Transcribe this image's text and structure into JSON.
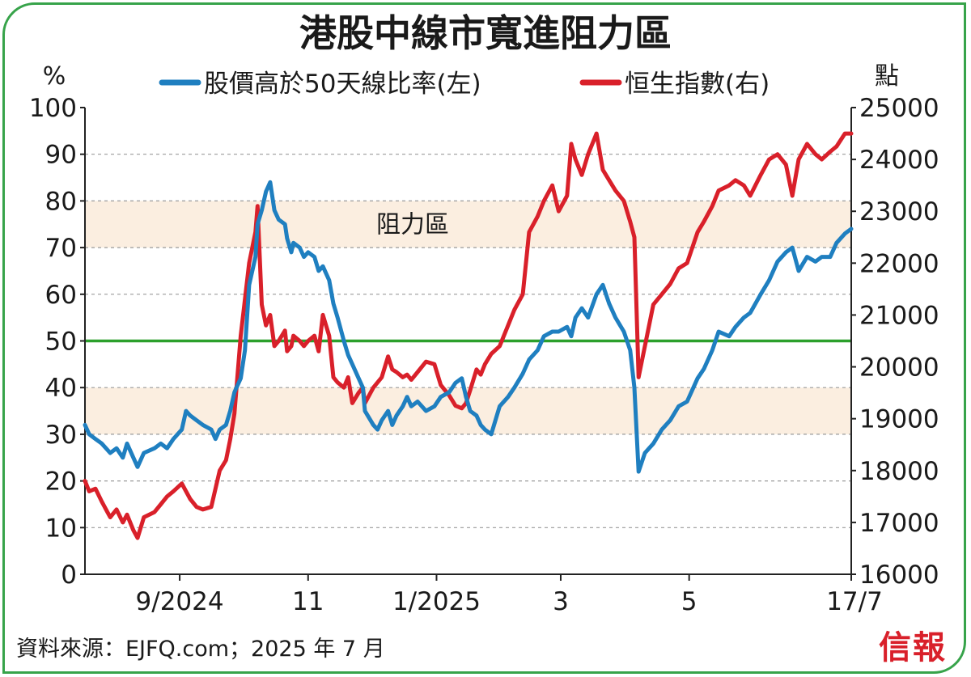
{
  "chart_data": {
    "type": "line",
    "title": "港股中線市寬進阻力區",
    "left_axis": {
      "unit_label": "%",
      "range": [
        0,
        100
      ],
      "ticks": [
        0,
        10,
        20,
        30,
        40,
        50,
        60,
        70,
        80,
        90,
        100
      ]
    },
    "right_axis": {
      "unit_label": "點",
      "range": [
        16000,
        25000
      ],
      "ticks": [
        16000,
        17000,
        18000,
        19000,
        20000,
        21000,
        22000,
        23000,
        24000,
        25000
      ]
    },
    "x_tick_labels": [
      "9/2024",
      "11",
      "1/2025",
      "3",
      "5",
      "17/7"
    ],
    "x_tick_dates": [
      "2024-09-01",
      "2024-11-01",
      "2025-01-01",
      "2025-03-01",
      "2025-05-01",
      "2025-07-17"
    ],
    "x_range": [
      "2024-07-18",
      "2025-07-17"
    ],
    "zones": [
      {
        "label": "阻力區",
        "from": 70,
        "to": 80
      },
      {
        "label": "",
        "from": 30,
        "to": 40
      }
    ],
    "reference_line": {
      "value": 50,
      "color": "#2ca02c"
    },
    "gridlines": true,
    "legend_placement": "top",
    "series": [
      {
        "name": "股價高於50天線比率(左)",
        "axis": "left",
        "color": "#1f7fc0",
        "points": [
          [
            "2024-07-18",
            32
          ],
          [
            "2024-07-20",
            30
          ],
          [
            "2024-07-23",
            29
          ],
          [
            "2024-07-26",
            28
          ],
          [
            "2024-07-30",
            26
          ],
          [
            "2024-08-02",
            27
          ],
          [
            "2024-08-05",
            25
          ],
          [
            "2024-08-07",
            28
          ],
          [
            "2024-08-10",
            25
          ],
          [
            "2024-08-12",
            23
          ],
          [
            "2024-08-15",
            26
          ],
          [
            "2024-08-20",
            27
          ],
          [
            "2024-08-23",
            28
          ],
          [
            "2024-08-26",
            27
          ],
          [
            "2024-08-29",
            29
          ],
          [
            "2024-09-02",
            31
          ],
          [
            "2024-09-04",
            35
          ],
          [
            "2024-09-06",
            34
          ],
          [
            "2024-09-09",
            33
          ],
          [
            "2024-09-12",
            32
          ],
          [
            "2024-09-16",
            31
          ],
          [
            "2024-09-18",
            29
          ],
          [
            "2024-09-20",
            31
          ],
          [
            "2024-09-23",
            32
          ],
          [
            "2024-09-25",
            35
          ],
          [
            "2024-09-27",
            39
          ],
          [
            "2024-09-30",
            42
          ],
          [
            "2024-10-02",
            48
          ],
          [
            "2024-10-04",
            62
          ],
          [
            "2024-10-07",
            68
          ],
          [
            "2024-10-08",
            75
          ],
          [
            "2024-10-10",
            78
          ],
          [
            "2024-10-12",
            82
          ],
          [
            "2024-10-14",
            84
          ],
          [
            "2024-10-16",
            78
          ],
          [
            "2024-10-18",
            76
          ],
          [
            "2024-10-21",
            75
          ],
          [
            "2024-10-22",
            72
          ],
          [
            "2024-10-24",
            69
          ],
          [
            "2024-10-25",
            71
          ],
          [
            "2024-10-28",
            70
          ],
          [
            "2024-10-30",
            68
          ],
          [
            "2024-11-01",
            69
          ],
          [
            "2024-11-04",
            68
          ],
          [
            "2024-11-06",
            65
          ],
          [
            "2024-11-08",
            66
          ],
          [
            "2024-11-11",
            63
          ],
          [
            "2024-11-13",
            58
          ],
          [
            "2024-11-15",
            55
          ],
          [
            "2024-11-18",
            50
          ],
          [
            "2024-11-20",
            47
          ],
          [
            "2024-11-22",
            45
          ],
          [
            "2024-11-25",
            42
          ],
          [
            "2024-11-27",
            40
          ],
          [
            "2024-11-28",
            35
          ],
          [
            "2024-12-02",
            32
          ],
          [
            "2024-12-04",
            31
          ],
          [
            "2024-12-06",
            33
          ],
          [
            "2024-12-09",
            35
          ],
          [
            "2024-12-11",
            32
          ],
          [
            "2024-12-13",
            34
          ],
          [
            "2024-12-16",
            36
          ],
          [
            "2024-12-18",
            38
          ],
          [
            "2024-12-20",
            36
          ],
          [
            "2024-12-23",
            37
          ],
          [
            "2024-12-27",
            35
          ],
          [
            "2024-12-31",
            36
          ],
          [
            "2025-01-03",
            38
          ],
          [
            "2025-01-07",
            39
          ],
          [
            "2025-01-10",
            41
          ],
          [
            "2025-01-13",
            42
          ],
          [
            "2025-01-15",
            38
          ],
          [
            "2025-01-17",
            35
          ],
          [
            "2025-01-20",
            34
          ],
          [
            "2025-01-22",
            32
          ],
          [
            "2025-01-24",
            31
          ],
          [
            "2025-01-27",
            30
          ],
          [
            "2025-01-31",
            36
          ],
          [
            "2025-02-04",
            38
          ],
          [
            "2025-02-07",
            40
          ],
          [
            "2025-02-11",
            43
          ],
          [
            "2025-02-14",
            46
          ],
          [
            "2025-02-18",
            48
          ],
          [
            "2025-02-21",
            51
          ],
          [
            "2025-02-25",
            52
          ],
          [
            "2025-02-28",
            52
          ],
          [
            "2025-03-04",
            53
          ],
          [
            "2025-03-06",
            51
          ],
          [
            "2025-03-08",
            55
          ],
          [
            "2025-03-11",
            57
          ],
          [
            "2025-03-14",
            55
          ],
          [
            "2025-03-18",
            60
          ],
          [
            "2025-03-21",
            62
          ],
          [
            "2025-03-24",
            58
          ],
          [
            "2025-03-27",
            55
          ],
          [
            "2025-03-31",
            52
          ],
          [
            "2025-04-03",
            48
          ],
          [
            "2025-04-05",
            40
          ],
          [
            "2025-04-07",
            22
          ],
          [
            "2025-04-10",
            26
          ],
          [
            "2025-04-14",
            28
          ],
          [
            "2025-04-18",
            31
          ],
          [
            "2025-04-22",
            33
          ],
          [
            "2025-04-26",
            36
          ],
          [
            "2025-04-30",
            37
          ],
          [
            "2025-05-05",
            42
          ],
          [
            "2025-05-08",
            44
          ],
          [
            "2025-05-12",
            48
          ],
          [
            "2025-05-15",
            52
          ],
          [
            "2025-05-20",
            51
          ],
          [
            "2025-05-23",
            53
          ],
          [
            "2025-05-27",
            55
          ],
          [
            "2025-05-30",
            56
          ],
          [
            "2025-06-04",
            60
          ],
          [
            "2025-06-08",
            63
          ],
          [
            "2025-06-12",
            67
          ],
          [
            "2025-06-16",
            69
          ],
          [
            "2025-06-19",
            70
          ],
          [
            "2025-06-22",
            65
          ],
          [
            "2025-06-26",
            68
          ],
          [
            "2025-06-30",
            67
          ],
          [
            "2025-07-03",
            68
          ],
          [
            "2025-07-07",
            68
          ],
          [
            "2025-07-10",
            71
          ],
          [
            "2025-07-14",
            73
          ],
          [
            "2025-07-17",
            74
          ]
        ]
      },
      {
        "name": "恒生指數(右)",
        "axis": "right",
        "color": "#d9202a",
        "points": [
          [
            "2024-07-18",
            17800
          ],
          [
            "2024-07-20",
            17600
          ],
          [
            "2024-07-23",
            17650
          ],
          [
            "2024-07-26",
            17400
          ],
          [
            "2024-07-30",
            17100
          ],
          [
            "2024-08-02",
            17250
          ],
          [
            "2024-08-05",
            17000
          ],
          [
            "2024-08-07",
            17150
          ],
          [
            "2024-08-10",
            16850
          ],
          [
            "2024-08-12",
            16700
          ],
          [
            "2024-08-15",
            17100
          ],
          [
            "2024-08-20",
            17200
          ],
          [
            "2024-08-23",
            17350
          ],
          [
            "2024-08-26",
            17500
          ],
          [
            "2024-08-29",
            17600
          ],
          [
            "2024-09-02",
            17750
          ],
          [
            "2024-09-04",
            17600
          ],
          [
            "2024-09-06",
            17450
          ],
          [
            "2024-09-09",
            17300
          ],
          [
            "2024-09-12",
            17250
          ],
          [
            "2024-09-16",
            17300
          ],
          [
            "2024-09-18",
            17650
          ],
          [
            "2024-09-20",
            18000
          ],
          [
            "2024-09-23",
            18200
          ],
          [
            "2024-09-25",
            18600
          ],
          [
            "2024-09-27",
            19100
          ],
          [
            "2024-09-30",
            20600
          ],
          [
            "2024-10-02",
            21300
          ],
          [
            "2024-10-04",
            22000
          ],
          [
            "2024-10-07",
            22600
          ],
          [
            "2024-10-08",
            23100
          ],
          [
            "2024-10-10",
            21200
          ],
          [
            "2024-10-12",
            20800
          ],
          [
            "2024-10-14",
            21000
          ],
          [
            "2024-10-16",
            20400
          ],
          [
            "2024-10-18",
            20500
          ],
          [
            "2024-10-21",
            20700
          ],
          [
            "2024-10-22",
            20300
          ],
          [
            "2024-10-24",
            20400
          ],
          [
            "2024-10-25",
            20600
          ],
          [
            "2024-10-28",
            20500
          ],
          [
            "2024-10-30",
            20400
          ],
          [
            "2024-11-01",
            20500
          ],
          [
            "2024-11-04",
            20600
          ],
          [
            "2024-11-06",
            20300
          ],
          [
            "2024-11-08",
            21000
          ],
          [
            "2024-11-11",
            20600
          ],
          [
            "2024-11-13",
            19800
          ],
          [
            "2024-11-15",
            19700
          ],
          [
            "2024-11-18",
            19600
          ],
          [
            "2024-11-20",
            19800
          ],
          [
            "2024-11-22",
            19300
          ],
          [
            "2024-11-25",
            19500
          ],
          [
            "2024-11-27",
            19600
          ],
          [
            "2024-11-28",
            19300
          ],
          [
            "2024-12-02",
            19600
          ],
          [
            "2024-12-04",
            19700
          ],
          [
            "2024-12-06",
            19800
          ],
          [
            "2024-12-09",
            20200
          ],
          [
            "2024-12-11",
            19950
          ],
          [
            "2024-12-13",
            19900
          ],
          [
            "2024-12-16",
            19800
          ],
          [
            "2024-12-18",
            19850
          ],
          [
            "2024-12-20",
            19750
          ],
          [
            "2024-12-23",
            19900
          ],
          [
            "2024-12-27",
            20100
          ],
          [
            "2024-12-31",
            20050
          ],
          [
            "2025-01-03",
            19650
          ],
          [
            "2025-01-07",
            19450
          ],
          [
            "2025-01-10",
            19250
          ],
          [
            "2025-01-13",
            19200
          ],
          [
            "2025-01-15",
            19300
          ],
          [
            "2025-01-17",
            19550
          ],
          [
            "2025-01-20",
            19950
          ],
          [
            "2025-01-22",
            19850
          ],
          [
            "2025-01-24",
            20050
          ],
          [
            "2025-01-27",
            20250
          ],
          [
            "2025-01-31",
            20400
          ],
          [
            "2025-02-04",
            20800
          ],
          [
            "2025-02-07",
            21100
          ],
          [
            "2025-02-11",
            21400
          ],
          [
            "2025-02-14",
            22600
          ],
          [
            "2025-02-18",
            22900
          ],
          [
            "2025-02-21",
            23200
          ],
          [
            "2025-02-25",
            23500
          ],
          [
            "2025-02-28",
            23000
          ],
          [
            "2025-03-04",
            23300
          ],
          [
            "2025-03-06",
            24300
          ],
          [
            "2025-03-08",
            24000
          ],
          [
            "2025-03-11",
            23700
          ],
          [
            "2025-03-14",
            24100
          ],
          [
            "2025-03-18",
            24500
          ],
          [
            "2025-03-21",
            23800
          ],
          [
            "2025-03-24",
            23600
          ],
          [
            "2025-03-27",
            23400
          ],
          [
            "2025-03-31",
            23200
          ],
          [
            "2025-04-03",
            22800
          ],
          [
            "2025-04-05",
            22500
          ],
          [
            "2025-04-07",
            19800
          ],
          [
            "2025-04-10",
            20400
          ],
          [
            "2025-04-14",
            21200
          ],
          [
            "2025-04-18",
            21400
          ],
          [
            "2025-04-22",
            21600
          ],
          [
            "2025-04-26",
            21900
          ],
          [
            "2025-04-30",
            22000
          ],
          [
            "2025-05-05",
            22600
          ],
          [
            "2025-05-08",
            22800
          ],
          [
            "2025-05-12",
            23100
          ],
          [
            "2025-05-15",
            23400
          ],
          [
            "2025-05-20",
            23500
          ],
          [
            "2025-05-23",
            23600
          ],
          [
            "2025-05-27",
            23500
          ],
          [
            "2025-05-30",
            23300
          ],
          [
            "2025-06-04",
            23700
          ],
          [
            "2025-06-08",
            24000
          ],
          [
            "2025-06-12",
            24100
          ],
          [
            "2025-06-16",
            23900
          ],
          [
            "2025-06-19",
            23300
          ],
          [
            "2025-06-22",
            24000
          ],
          [
            "2025-06-26",
            24300
          ],
          [
            "2025-06-30",
            24100
          ],
          [
            "2025-07-03",
            24000
          ],
          [
            "2025-07-07",
            24150
          ],
          [
            "2025-07-10",
            24250
          ],
          [
            "2025-07-14",
            24500
          ],
          [
            "2025-07-17",
            24500
          ]
        ]
      }
    ]
  },
  "source": "資料來源：EJFQ.com；2025 年 7 月",
  "logo_text": "信報"
}
